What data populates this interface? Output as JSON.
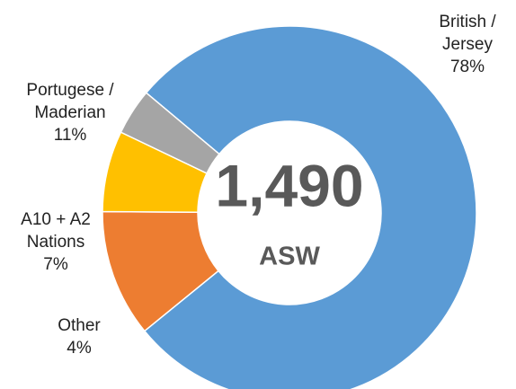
{
  "chart_data": {
    "type": "donut",
    "center_title": "1,490",
    "center_subtitle": "ASW",
    "categories": [
      "British / Jersey",
      "Portugese / Maderian",
      "A10 + A2 Nations",
      "Other"
    ],
    "values": [
      78,
      11,
      7,
      4
    ],
    "value_labels": [
      "78%",
      "11%",
      "7%",
      "4%"
    ],
    "colors": [
      "#5b9bd5",
      "#ed7d31",
      "#ffc000",
      "#a5a5a5"
    ]
  }
}
